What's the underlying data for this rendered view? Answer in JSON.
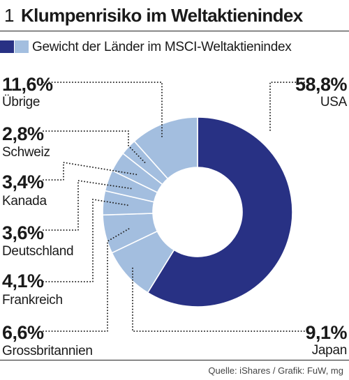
{
  "header": {
    "figure_number": "1",
    "title": "Klumpenrisiko im Weltaktienindex"
  },
  "legend": {
    "label": "Gewicht der Länder im MSCI-Weltaktienindex"
  },
  "colors": {
    "primary": "#283184",
    "secondary": "#a3bedf",
    "separator": "#ffffff",
    "leader": "#222222"
  },
  "chart_data": {
    "type": "pie",
    "donut": true,
    "unit": "%",
    "slices": [
      {
        "label": "USA",
        "value": 58.8,
        "value_label": "58,8%",
        "color": "#283184"
      },
      {
        "label": "Japan",
        "value": 9.1,
        "value_label": "9,1%",
        "color": "#a3bedf"
      },
      {
        "label": "Grossbritannien",
        "value": 6.6,
        "value_label": "6,6%",
        "color": "#a3bedf"
      },
      {
        "label": "Frankreich",
        "value": 4.1,
        "value_label": "4,1%",
        "color": "#a3bedf"
      },
      {
        "label": "Deutschland",
        "value": 3.6,
        "value_label": "3,6%",
        "color": "#a3bedf"
      },
      {
        "label": "Kanada",
        "value": 3.4,
        "value_label": "3,4%",
        "color": "#a3bedf"
      },
      {
        "label": "Schweiz",
        "value": 2.8,
        "value_label": "2,8%",
        "color": "#a3bedf"
      },
      {
        "label": "Übrige",
        "value": 11.6,
        "value_label": "11,6%",
        "color": "#a3bedf"
      }
    ]
  },
  "footer": {
    "source": "Quelle: iShares / Grafik: FuW, mg"
  }
}
